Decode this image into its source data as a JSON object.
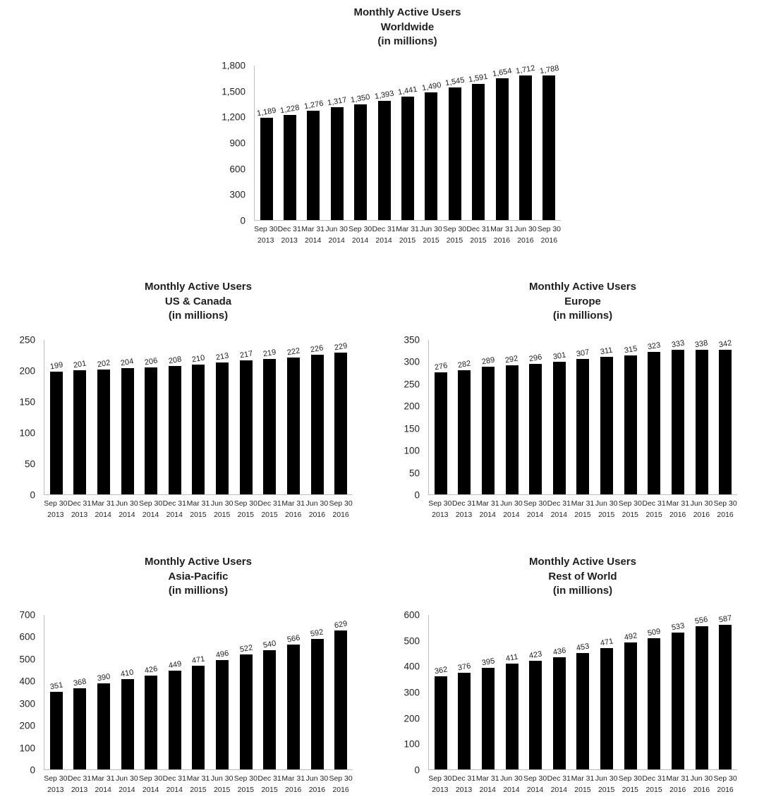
{
  "colors": {
    "bar": "#000000",
    "axis_line": "#bdbdbd",
    "text": "#1f1f1f",
    "background": "#ffffff"
  },
  "chart_data": [
    {
      "id": "worldwide",
      "type": "bar",
      "title_lines": [
        "Monthly Active Users",
        "Worldwide",
        "(in millions)"
      ],
      "categories": [
        [
          "Sep 30",
          "2013"
        ],
        [
          "Dec 31",
          "2013"
        ],
        [
          "Mar 31",
          "2014"
        ],
        [
          "Jun 30",
          "2014"
        ],
        [
          "Sep 30",
          "2014"
        ],
        [
          "Dec 31",
          "2014"
        ],
        [
          "Mar 31",
          "2015"
        ],
        [
          "Jun 30",
          "2015"
        ],
        [
          "Sep 30",
          "2015"
        ],
        [
          "Dec 31",
          "2015"
        ],
        [
          "Mar 31",
          "2016"
        ],
        [
          "Jun 30",
          "2016"
        ],
        [
          "Sep 30",
          "2016"
        ]
      ],
      "values": [
        1189,
        1228,
        1276,
        1317,
        1350,
        1393,
        1441,
        1490,
        1545,
        1591,
        1654,
        1712,
        1788
      ],
      "value_labels": [
        "1,189",
        "1,228",
        "1,276",
        "1,317",
        "1,350",
        "1,393",
        "1,441",
        "1,490",
        "1,545",
        "1,591",
        "1,654",
        "1,712",
        "1,788"
      ],
      "ylim": [
        0,
        1800
      ],
      "y_ticks": [
        {
          "value": 0,
          "label": "0"
        },
        {
          "value": 300,
          "label": "300"
        },
        {
          "value": 600,
          "label": "600"
        },
        {
          "value": 900,
          "label": "900"
        },
        {
          "value": 1200,
          "label": "1,200"
        },
        {
          "value": 1500,
          "label": "1,500"
        },
        {
          "value": 1800,
          "label": "1,800"
        }
      ],
      "grid": false,
      "legend": null,
      "bar_color": "#000000"
    },
    {
      "id": "us-canada",
      "type": "bar",
      "title_lines": [
        "Monthly Active Users",
        "US & Canada",
        "(in millions)"
      ],
      "categories": [
        [
          "Sep 30",
          "2013"
        ],
        [
          "Dec 31",
          "2013"
        ],
        [
          "Mar 31",
          "2014"
        ],
        [
          "Jun 30",
          "2014"
        ],
        [
          "Sep 30",
          "2014"
        ],
        [
          "Dec 31",
          "2014"
        ],
        [
          "Mar 31",
          "2015"
        ],
        [
          "Jun 30",
          "2015"
        ],
        [
          "Sep 30",
          "2015"
        ],
        [
          "Dec 31",
          "2015"
        ],
        [
          "Mar 31",
          "2016"
        ],
        [
          "Jun 30",
          "2016"
        ],
        [
          "Sep 30",
          "2016"
        ]
      ],
      "values": [
        199,
        201,
        202,
        204,
        206,
        208,
        210,
        213,
        217,
        219,
        222,
        226,
        229
      ],
      "value_labels": [
        "199",
        "201",
        "202",
        "204",
        "206",
        "208",
        "210",
        "213",
        "217",
        "219",
        "222",
        "226",
        "229"
      ],
      "ylim": [
        0,
        250
      ],
      "y_ticks": [
        {
          "value": 0,
          "label": "0"
        },
        {
          "value": 50,
          "label": "50"
        },
        {
          "value": 100,
          "label": "100"
        },
        {
          "value": 150,
          "label": "150"
        },
        {
          "value": 200,
          "label": "200"
        },
        {
          "value": 250,
          "label": "250"
        }
      ],
      "grid": false,
      "legend": null,
      "bar_color": "#000000"
    },
    {
      "id": "europe",
      "type": "bar",
      "title_lines": [
        "Monthly Active Users",
        "Europe",
        "(in millions)"
      ],
      "categories": [
        [
          "Sep 30",
          "2013"
        ],
        [
          "Dec 31",
          "2013"
        ],
        [
          "Mar 31",
          "2014"
        ],
        [
          "Jun 30",
          "2014"
        ],
        [
          "Sep 30",
          "2014"
        ],
        [
          "Dec 31",
          "2014"
        ],
        [
          "Mar 31",
          "2015"
        ],
        [
          "Jun 30",
          "2015"
        ],
        [
          "Sep 30",
          "2015"
        ],
        [
          "Dec 31",
          "2015"
        ],
        [
          "Mar 31",
          "2016"
        ],
        [
          "Jun 30",
          "2016"
        ],
        [
          "Sep 30",
          "2016"
        ]
      ],
      "values": [
        276,
        282,
        289,
        292,
        296,
        301,
        307,
        311,
        315,
        323,
        333,
        338,
        342
      ],
      "value_labels": [
        "276",
        "282",
        "289",
        "292",
        "296",
        "301",
        "307",
        "311",
        "315",
        "323",
        "333",
        "338",
        "342"
      ],
      "ylim": [
        0,
        350
      ],
      "y_ticks": [
        {
          "value": 0,
          "label": "0"
        },
        {
          "value": 50,
          "label": "50"
        },
        {
          "value": 100,
          "label": "100"
        },
        {
          "value": 150,
          "label": "150"
        },
        {
          "value": 200,
          "label": "200"
        },
        {
          "value": 250,
          "label": "250"
        },
        {
          "value": 300,
          "label": "300"
        },
        {
          "value": 350,
          "label": "350"
        }
      ],
      "grid": false,
      "legend": null,
      "bar_color": "#000000"
    },
    {
      "id": "asia-pacific",
      "type": "bar",
      "title_lines": [
        "Monthly Active Users",
        "Asia-Pacific",
        "(in millions)"
      ],
      "categories": [
        [
          "Sep 30",
          "2013"
        ],
        [
          "Dec 31",
          "2013"
        ],
        [
          "Mar 31",
          "2014"
        ],
        [
          "Jun 30",
          "2014"
        ],
        [
          "Sep 30",
          "2014"
        ],
        [
          "Dec 31",
          "2014"
        ],
        [
          "Mar 31",
          "2015"
        ],
        [
          "Jun 30",
          "2015"
        ],
        [
          "Sep 30",
          "2015"
        ],
        [
          "Dec 31",
          "2015"
        ],
        [
          "Mar 31",
          "2016"
        ],
        [
          "Jun 30",
          "2016"
        ],
        [
          "Sep 30",
          "2016"
        ]
      ],
      "values": [
        351,
        368,
        390,
        410,
        426,
        449,
        471,
        496,
        522,
        540,
        566,
        592,
        629
      ],
      "value_labels": [
        "351",
        "368",
        "390",
        "410",
        "426",
        "449",
        "471",
        "496",
        "522",
        "540",
        "566",
        "592",
        "629"
      ],
      "ylim": [
        0,
        700
      ],
      "y_ticks": [
        {
          "value": 0,
          "label": "0"
        },
        {
          "value": 100,
          "label": "100"
        },
        {
          "value": 200,
          "label": "200"
        },
        {
          "value": 300,
          "label": "300"
        },
        {
          "value": 400,
          "label": "400"
        },
        {
          "value": 500,
          "label": "500"
        },
        {
          "value": 600,
          "label": "600"
        },
        {
          "value": 700,
          "label": "700"
        }
      ],
      "grid": false,
      "legend": null,
      "bar_color": "#000000"
    },
    {
      "id": "rest-of-world",
      "type": "bar",
      "title_lines": [
        "Monthly Active Users",
        "Rest of World",
        "(in millions)"
      ],
      "categories": [
        [
          "Sep 30",
          "2013"
        ],
        [
          "Dec 31",
          "2013"
        ],
        [
          "Mar 31",
          "2014"
        ],
        [
          "Jun 30",
          "2014"
        ],
        [
          "Sep 30",
          "2014"
        ],
        [
          "Dec 31",
          "2014"
        ],
        [
          "Mar 31",
          "2015"
        ],
        [
          "Jun 30",
          "2015"
        ],
        [
          "Sep 30",
          "2015"
        ],
        [
          "Dec 31",
          "2015"
        ],
        [
          "Mar 31",
          "2016"
        ],
        [
          "Jun 30",
          "2016"
        ],
        [
          "Sep 30",
          "2016"
        ]
      ],
      "values": [
        362,
        376,
        395,
        411,
        423,
        436,
        453,
        471,
        492,
        509,
        533,
        556,
        587
      ],
      "value_labels": [
        "362",
        "376",
        "395",
        "411",
        "423",
        "436",
        "453",
        "471",
        "492",
        "509",
        "533",
        "556",
        "587"
      ],
      "ylim": [
        0,
        600
      ],
      "y_ticks": [
        {
          "value": 0,
          "label": "0"
        },
        {
          "value": 100,
          "label": "100"
        },
        {
          "value": 200,
          "label": "200"
        },
        {
          "value": 300,
          "label": "300"
        },
        {
          "value": 400,
          "label": "400"
        },
        {
          "value": 500,
          "label": "500"
        },
        {
          "value": 600,
          "label": "600"
        }
      ],
      "grid": false,
      "legend": null,
      "bar_color": "#000000"
    }
  ]
}
